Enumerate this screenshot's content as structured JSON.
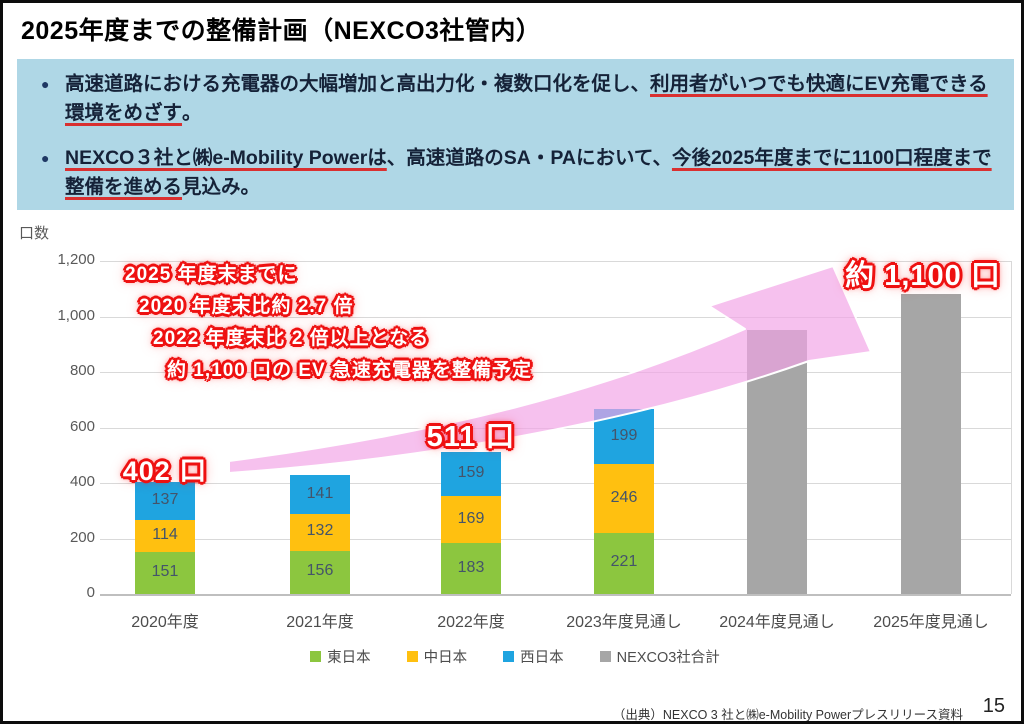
{
  "slide": {
    "title": "2025年度までの整備計画（NEXCO3社管内）",
    "page_number": "15",
    "source_note": "（出典）NEXCO 3 社と㈱e-Mobility Powerプレスリリース資料"
  },
  "info_box": {
    "bullets": [
      {
        "pre": "高速道路における充電器の大幅増加と高出力化・複数口化を促し、",
        "emphasis": "利用者がいつでも快適にEV充電できる環境をめざす",
        "post": "。"
      },
      {
        "emphasis1": "NEXCO３社と㈱e-Mobility Powerは",
        "mid": "、高速道路のSA・PAにおいて、",
        "emphasis2": "今後2025年度までに1100口程度まで整備を進める",
        "post": "見込み。"
      }
    ]
  },
  "annotation": {
    "lines": [
      "2025 年度末までに",
      "2020 年度末比約 2.7 倍",
      "2022 年度末比 2 倍以上となる",
      "約 1,100 口の EV 急速充電器を整備予定"
    ]
  },
  "chart_data": {
    "type": "bar",
    "stacked": true,
    "ylabel": "口数",
    "ylim": [
      0,
      1200
    ],
    "ytick_step": 200,
    "grid": true,
    "legend_position": "bottom",
    "categories": [
      "2020年度",
      "2021年度",
      "2022年度",
      "2023年度見通し",
      "2024年度見通し",
      "2025年度見通し"
    ],
    "series": [
      {
        "name": "東日本",
        "color": "#8CC63F",
        "show_value_labels": true,
        "values": [
          151,
          156,
          183,
          221,
          null,
          null
        ]
      },
      {
        "name": "中日本",
        "color": "#FFC010",
        "show_value_labels": true,
        "values": [
          114,
          132,
          169,
          246,
          null,
          null
        ]
      },
      {
        "name": "西日本",
        "color": "#1FA4E0",
        "show_value_labels": true,
        "values": [
          137,
          141,
          159,
          199,
          null,
          null
        ]
      },
      {
        "name": "NEXCO3社合計",
        "color": "#A6A6A6",
        "show_value_labels": false,
        "estimated": true,
        "values": [
          null,
          null,
          null,
          null,
          950,
          1080
        ]
      }
    ],
    "totals": [
      402,
      429,
      511,
      666,
      950,
      1080
    ],
    "total_labels": [
      {
        "index": 0,
        "text": "402 口"
      },
      {
        "index": 2,
        "text": "511 口"
      },
      {
        "index": 5,
        "text": "約 1,100 口"
      }
    ],
    "arrow_annotation_color": "#F2A3E6"
  }
}
